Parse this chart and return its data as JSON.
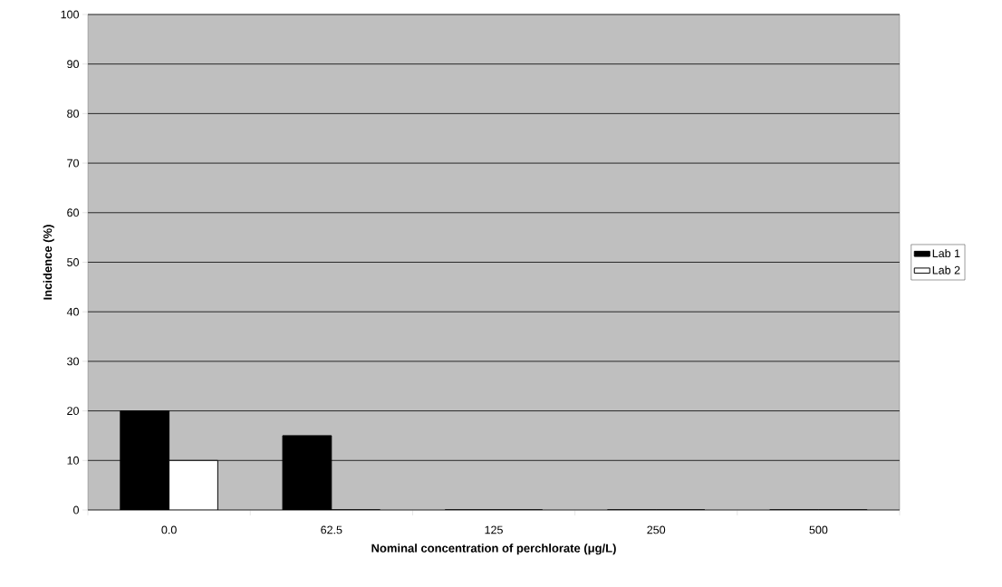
{
  "chart_data": {
    "type": "bar",
    "xlabel": "Nominal concentration of perchlorate (μg/L)",
    "ylabel": "Incidence (%)",
    "categories": [
      "0.0",
      "62.5",
      "125",
      "250",
      "500"
    ],
    "series": [
      {
        "name": "Lab 1",
        "color": "#000000",
        "values": [
          20,
          15,
          0,
          0,
          0
        ]
      },
      {
        "name": "Lab 2",
        "color": "#ffffff",
        "values": [
          10,
          0,
          0,
          0,
          0
        ]
      }
    ],
    "ylim": [
      0,
      100
    ],
    "yticks": [
      0,
      10,
      20,
      30,
      40,
      50,
      60,
      70,
      80,
      90,
      100
    ],
    "grid": "y",
    "legend": "right"
  }
}
